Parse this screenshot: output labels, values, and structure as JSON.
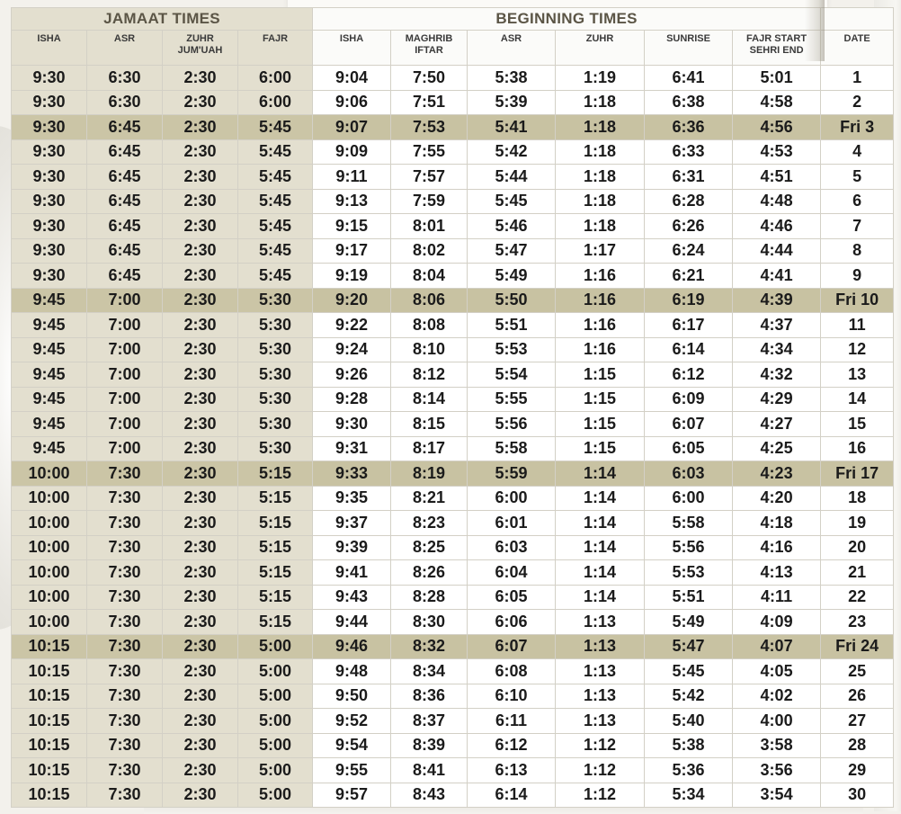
{
  "header": {
    "jamaat_title": "JAMAAT TIMES",
    "beginning_title": "BEGINNING TIMES",
    "jamaat_columns": [
      "ISHA",
      "ASR",
      "ZUHR JUM'UAH",
      "FAJR"
    ],
    "beginning_columns": [
      "ISHA",
      "MAGHRIB IFTAR",
      "ASR",
      "ZUHR",
      "SUNRISE",
      "FAJR START SEHRI END",
      "DATE"
    ]
  },
  "colors": {
    "jamaat_bg": "#e3dfcf",
    "friday_highlight": "#c8c2a2",
    "title_text": "#5b5546"
  },
  "rows": [
    {
      "j_isha": "9:30",
      "j_asr": "6:30",
      "j_zuhr": "2:30",
      "j_fajr": "6:00",
      "b_isha": "9:04",
      "b_maghrib": "7:50",
      "b_asr": "5:38",
      "b_zuhr": "1:19",
      "b_sunrise": "6:41",
      "b_fajr": "5:01",
      "date": "1",
      "friday": false
    },
    {
      "j_isha": "9:30",
      "j_asr": "6:30",
      "j_zuhr": "2:30",
      "j_fajr": "6:00",
      "b_isha": "9:06",
      "b_maghrib": "7:51",
      "b_asr": "5:39",
      "b_zuhr": "1:18",
      "b_sunrise": "6:38",
      "b_fajr": "4:58",
      "date": "2",
      "friday": false
    },
    {
      "j_isha": "9:30",
      "j_asr": "6:45",
      "j_zuhr": "2:30",
      "j_fajr": "5:45",
      "b_isha": "9:07",
      "b_maghrib": "7:53",
      "b_asr": "5:41",
      "b_zuhr": "1:18",
      "b_sunrise": "6:36",
      "b_fajr": "4:56",
      "date": "Fri 3",
      "friday": true
    },
    {
      "j_isha": "9:30",
      "j_asr": "6:45",
      "j_zuhr": "2:30",
      "j_fajr": "5:45",
      "b_isha": "9:09",
      "b_maghrib": "7:55",
      "b_asr": "5:42",
      "b_zuhr": "1:18",
      "b_sunrise": "6:33",
      "b_fajr": "4:53",
      "date": "4",
      "friday": false
    },
    {
      "j_isha": "9:30",
      "j_asr": "6:45",
      "j_zuhr": "2:30",
      "j_fajr": "5:45",
      "b_isha": "9:11",
      "b_maghrib": "7:57",
      "b_asr": "5:44",
      "b_zuhr": "1:18",
      "b_sunrise": "6:31",
      "b_fajr": "4:51",
      "date": "5",
      "friday": false
    },
    {
      "j_isha": "9:30",
      "j_asr": "6:45",
      "j_zuhr": "2:30",
      "j_fajr": "5:45",
      "b_isha": "9:13",
      "b_maghrib": "7:59",
      "b_asr": "5:45",
      "b_zuhr": "1:18",
      "b_sunrise": "6:28",
      "b_fajr": "4:48",
      "date": "6",
      "friday": false
    },
    {
      "j_isha": "9:30",
      "j_asr": "6:45",
      "j_zuhr": "2:30",
      "j_fajr": "5:45",
      "b_isha": "9:15",
      "b_maghrib": "8:01",
      "b_asr": "5:46",
      "b_zuhr": "1:18",
      "b_sunrise": "6:26",
      "b_fajr": "4:46",
      "date": "7",
      "friday": false
    },
    {
      "j_isha": "9:30",
      "j_asr": "6:45",
      "j_zuhr": "2:30",
      "j_fajr": "5:45",
      "b_isha": "9:17",
      "b_maghrib": "8:02",
      "b_asr": "5:47",
      "b_zuhr": "1:17",
      "b_sunrise": "6:24",
      "b_fajr": "4:44",
      "date": "8",
      "friday": false
    },
    {
      "j_isha": "9:30",
      "j_asr": "6:45",
      "j_zuhr": "2:30",
      "j_fajr": "5:45",
      "b_isha": "9:19",
      "b_maghrib": "8:04",
      "b_asr": "5:49",
      "b_zuhr": "1:16",
      "b_sunrise": "6:21",
      "b_fajr": "4:41",
      "date": "9",
      "friday": false
    },
    {
      "j_isha": "9:45",
      "j_asr": "7:00",
      "j_zuhr": "2:30",
      "j_fajr": "5:30",
      "b_isha": "9:20",
      "b_maghrib": "8:06",
      "b_asr": "5:50",
      "b_zuhr": "1:16",
      "b_sunrise": "6:19",
      "b_fajr": "4:39",
      "date": "Fri 10",
      "friday": true
    },
    {
      "j_isha": "9:45",
      "j_asr": "7:00",
      "j_zuhr": "2:30",
      "j_fajr": "5:30",
      "b_isha": "9:22",
      "b_maghrib": "8:08",
      "b_asr": "5:51",
      "b_zuhr": "1:16",
      "b_sunrise": "6:17",
      "b_fajr": "4:37",
      "date": "11",
      "friday": false
    },
    {
      "j_isha": "9:45",
      "j_asr": "7:00",
      "j_zuhr": "2:30",
      "j_fajr": "5:30",
      "b_isha": "9:24",
      "b_maghrib": "8:10",
      "b_asr": "5:53",
      "b_zuhr": "1:16",
      "b_sunrise": "6:14",
      "b_fajr": "4:34",
      "date": "12",
      "friday": false
    },
    {
      "j_isha": "9:45",
      "j_asr": "7:00",
      "j_zuhr": "2:30",
      "j_fajr": "5:30",
      "b_isha": "9:26",
      "b_maghrib": "8:12",
      "b_asr": "5:54",
      "b_zuhr": "1:15",
      "b_sunrise": "6:12",
      "b_fajr": "4:32",
      "date": "13",
      "friday": false
    },
    {
      "j_isha": "9:45",
      "j_asr": "7:00",
      "j_zuhr": "2:30",
      "j_fajr": "5:30",
      "b_isha": "9:28",
      "b_maghrib": "8:14",
      "b_asr": "5:55",
      "b_zuhr": "1:15",
      "b_sunrise": "6:09",
      "b_fajr": "4:29",
      "date": "14",
      "friday": false
    },
    {
      "j_isha": "9:45",
      "j_asr": "7:00",
      "j_zuhr": "2:30",
      "j_fajr": "5:30",
      "b_isha": "9:30",
      "b_maghrib": "8:15",
      "b_asr": "5:56",
      "b_zuhr": "1:15",
      "b_sunrise": "6:07",
      "b_fajr": "4:27",
      "date": "15",
      "friday": false
    },
    {
      "j_isha": "9:45",
      "j_asr": "7:00",
      "j_zuhr": "2:30",
      "j_fajr": "5:30",
      "b_isha": "9:31",
      "b_maghrib": "8:17",
      "b_asr": "5:58",
      "b_zuhr": "1:15",
      "b_sunrise": "6:05",
      "b_fajr": "4:25",
      "date": "16",
      "friday": false
    },
    {
      "j_isha": "10:00",
      "j_asr": "7:30",
      "j_zuhr": "2:30",
      "j_fajr": "5:15",
      "b_isha": "9:33",
      "b_maghrib": "8:19",
      "b_asr": "5:59",
      "b_zuhr": "1:14",
      "b_sunrise": "6:03",
      "b_fajr": "4:23",
      "date": "Fri 17",
      "friday": true
    },
    {
      "j_isha": "10:00",
      "j_asr": "7:30",
      "j_zuhr": "2:30",
      "j_fajr": "5:15",
      "b_isha": "9:35",
      "b_maghrib": "8:21",
      "b_asr": "6:00",
      "b_zuhr": "1:14",
      "b_sunrise": "6:00",
      "b_fajr": "4:20",
      "date": "18",
      "friday": false
    },
    {
      "j_isha": "10:00",
      "j_asr": "7:30",
      "j_zuhr": "2:30",
      "j_fajr": "5:15",
      "b_isha": "9:37",
      "b_maghrib": "8:23",
      "b_asr": "6:01",
      "b_zuhr": "1:14",
      "b_sunrise": "5:58",
      "b_fajr": "4:18",
      "date": "19",
      "friday": false
    },
    {
      "j_isha": "10:00",
      "j_asr": "7:30",
      "j_zuhr": "2:30",
      "j_fajr": "5:15",
      "b_isha": "9:39",
      "b_maghrib": "8:25",
      "b_asr": "6:03",
      "b_zuhr": "1:14",
      "b_sunrise": "5:56",
      "b_fajr": "4:16",
      "date": "20",
      "friday": false
    },
    {
      "j_isha": "10:00",
      "j_asr": "7:30",
      "j_zuhr": "2:30",
      "j_fajr": "5:15",
      "b_isha": "9:41",
      "b_maghrib": "8:26",
      "b_asr": "6:04",
      "b_zuhr": "1:14",
      "b_sunrise": "5:53",
      "b_fajr": "4:13",
      "date": "21",
      "friday": false
    },
    {
      "j_isha": "10:00",
      "j_asr": "7:30",
      "j_zuhr": "2:30",
      "j_fajr": "5:15",
      "b_isha": "9:43",
      "b_maghrib": "8:28",
      "b_asr": "6:05",
      "b_zuhr": "1:14",
      "b_sunrise": "5:51",
      "b_fajr": "4:11",
      "date": "22",
      "friday": false
    },
    {
      "j_isha": "10:00",
      "j_asr": "7:30",
      "j_zuhr": "2:30",
      "j_fajr": "5:15",
      "b_isha": "9:44",
      "b_maghrib": "8:30",
      "b_asr": "6:06",
      "b_zuhr": "1:13",
      "b_sunrise": "5:49",
      "b_fajr": "4:09",
      "date": "23",
      "friday": false
    },
    {
      "j_isha": "10:15",
      "j_asr": "7:30",
      "j_zuhr": "2:30",
      "j_fajr": "5:00",
      "b_isha": "9:46",
      "b_maghrib": "8:32",
      "b_asr": "6:07",
      "b_zuhr": "1:13",
      "b_sunrise": "5:47",
      "b_fajr": "4:07",
      "date": "Fri 24",
      "friday": true
    },
    {
      "j_isha": "10:15",
      "j_asr": "7:30",
      "j_zuhr": "2:30",
      "j_fajr": "5:00",
      "b_isha": "9:48",
      "b_maghrib": "8:34",
      "b_asr": "6:08",
      "b_zuhr": "1:13",
      "b_sunrise": "5:45",
      "b_fajr": "4:05",
      "date": "25",
      "friday": false
    },
    {
      "j_isha": "10:15",
      "j_asr": "7:30",
      "j_zuhr": "2:30",
      "j_fajr": "5:00",
      "b_isha": "9:50",
      "b_maghrib": "8:36",
      "b_asr": "6:10",
      "b_zuhr": "1:13",
      "b_sunrise": "5:42",
      "b_fajr": "4:02",
      "date": "26",
      "friday": false
    },
    {
      "j_isha": "10:15",
      "j_asr": "7:30",
      "j_zuhr": "2:30",
      "j_fajr": "5:00",
      "b_isha": "9:52",
      "b_maghrib": "8:37",
      "b_asr": "6:11",
      "b_zuhr": "1:13",
      "b_sunrise": "5:40",
      "b_fajr": "4:00",
      "date": "27",
      "friday": false
    },
    {
      "j_isha": "10:15",
      "j_asr": "7:30",
      "j_zuhr": "2:30",
      "j_fajr": "5:00",
      "b_isha": "9:54",
      "b_maghrib": "8:39",
      "b_asr": "6:12",
      "b_zuhr": "1:12",
      "b_sunrise": "5:38",
      "b_fajr": "3:58",
      "date": "28",
      "friday": false
    },
    {
      "j_isha": "10:15",
      "j_asr": "7:30",
      "j_zuhr": "2:30",
      "j_fajr": "5:00",
      "b_isha": "9:55",
      "b_maghrib": "8:41",
      "b_asr": "6:13",
      "b_zuhr": "1:12",
      "b_sunrise": "5:36",
      "b_fajr": "3:56",
      "date": "29",
      "friday": false
    },
    {
      "j_isha": "10:15",
      "j_asr": "7:30",
      "j_zuhr": "2:30",
      "j_fajr": "5:00",
      "b_isha": "9:57",
      "b_maghrib": "8:43",
      "b_asr": "6:14",
      "b_zuhr": "1:12",
      "b_sunrise": "5:34",
      "b_fajr": "3:54",
      "date": "30",
      "friday": false
    }
  ]
}
